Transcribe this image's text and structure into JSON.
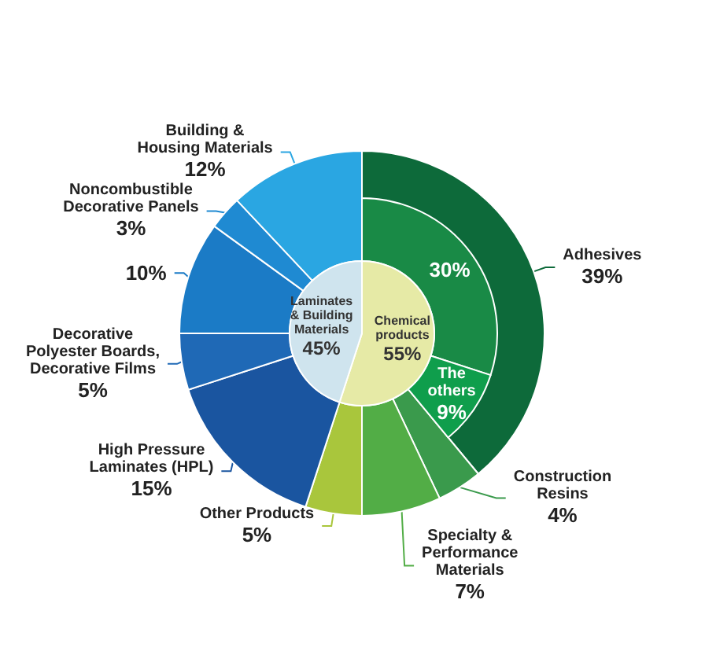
{
  "chart_data": [
    {
      "type": "pie",
      "categories": [
        "Chemical products",
        "Laminates & Building Materials"
      ],
      "values": [
        55,
        45
      ],
      "value_labels": [
        "55%",
        "45%"
      ],
      "colors": [
        "#e6eaa6",
        "#cfe4ee"
      ]
    },
    {
      "type": "donut",
      "categories": [
        "Adhesives",
        "Construction Resins",
        "Specialty & Performance Materials",
        "Other Products",
        "High Pressure Laminates (HPL)",
        "Decorative Polyester Boards, Decorative Films",
        null,
        "Noncombustible Decorative Panels",
        "Building & Housing Materials"
      ],
      "values": [
        39,
        4,
        7,
        5,
        15,
        5,
        10,
        3,
        12
      ],
      "value_labels": [
        "39%",
        "4%",
        "7%",
        "5%",
        "15%",
        "5%",
        "10%",
        "3%",
        "12%"
      ],
      "colors": [
        "#0d6a3a",
        "#3a9a4c",
        "#52ad46",
        "#a9c63c",
        "#1a55a0",
        "#1f69b6",
        "#1b7bc6",
        "#1f8ad2",
        "#2aa6e2"
      ]
    },
    {
      "type": "donut",
      "categories": [
        null,
        "The others"
      ],
      "values": [
        30,
        9
      ],
      "value_labels": [
        "30%",
        "9%"
      ],
      "colors": [
        "#198a46",
        "#0f9e4c"
      ]
    }
  ]
}
